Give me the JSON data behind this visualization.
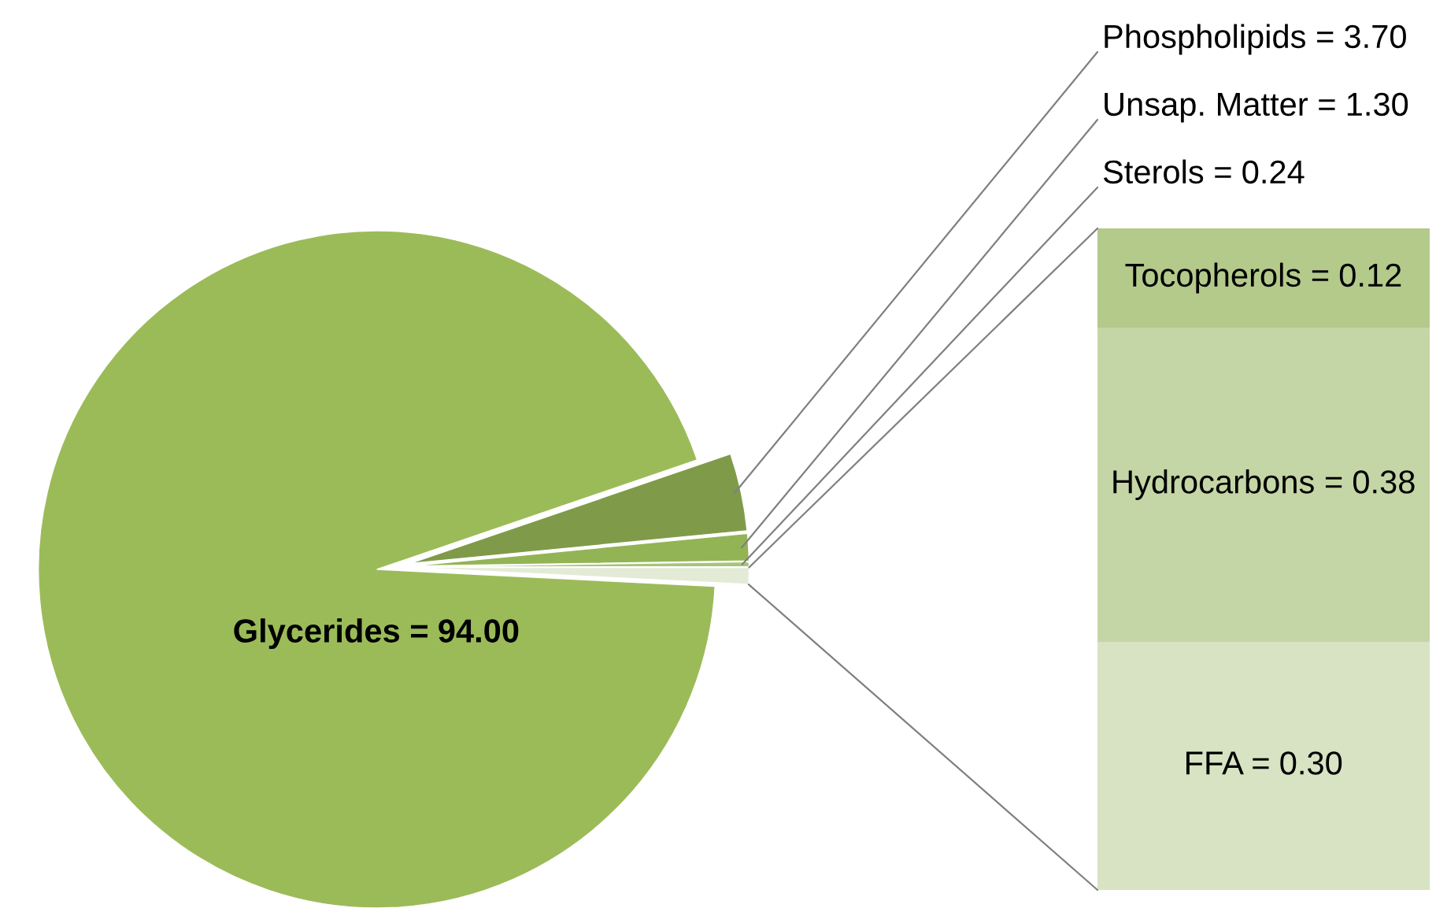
{
  "chart_data": [
    {
      "type": "pie",
      "categories": [
        "Glycerides =",
        "Phospholipids =",
        "Unsap. Matter =",
        "Sterols =",
        null
      ],
      "values": [
        94.0,
        3.7,
        1.3,
        0.24,
        0.8
      ],
      "value_labels": [
        "94.00",
        "3.70",
        "1.30",
        "0.24",
        null
      ],
      "colors": [
        "#9bbb59",
        "#7f9b4a",
        "#93b454",
        "#a8c47a",
        "#e3ebd6"
      ]
    },
    {
      "type": "bar",
      "categories": [
        null
      ],
      "stacked": true,
      "series": [
        {
          "name": "FFA =",
          "color": "#d7e3c3",
          "values": [
            0.3
          ],
          "value_labels": [
            "0.30"
          ]
        },
        {
          "name": "Hydrocarbons =",
          "color": "#c4d6a6",
          "values": [
            0.38
          ],
          "value_labels": [
            "0.38"
          ]
        },
        {
          "name": "Tocopherols =",
          "color": "#b3ca8b",
          "values": [
            0.12
          ],
          "value_labels": [
            "0.12"
          ]
        }
      ]
    }
  ]
}
